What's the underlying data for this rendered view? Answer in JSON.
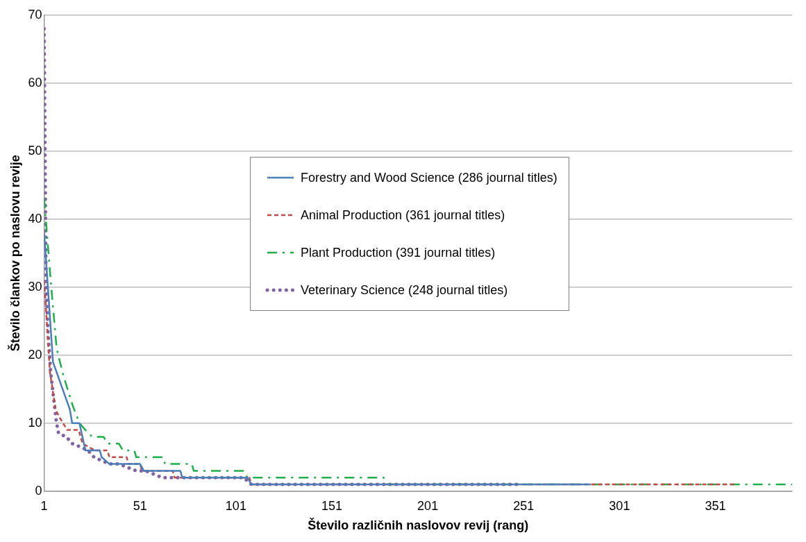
{
  "chart_data": {
    "type": "line",
    "xlabel": "Število različnih naslovov revij (rang)",
    "ylabel": "Število člankov po naslovu revije",
    "xlim": [
      1,
      391
    ],
    "xticks": [
      1,
      51,
      101,
      151,
      201,
      251,
      301,
      351
    ],
    "ylim": [
      0,
      70
    ],
    "yticks": [
      0,
      10,
      20,
      30,
      40,
      50,
      60,
      70
    ],
    "grid": "y",
    "legend": "center",
    "marker": "none",
    "series": [
      {
        "name": "Forestry and Wood Science (286 journal titles)",
        "color": "#4a7ebb",
        "line_style": "solid",
        "x": [
          1,
          5.6,
          14.4,
          15.6,
          19.4,
          22.5,
          30,
          31,
          35,
          51,
          53,
          72,
          73,
          107,
          109,
          286
        ],
        "values": [
          38,
          19,
          12,
          10,
          10,
          6,
          6,
          5,
          4,
          4,
          3,
          3,
          2,
          2,
          1,
          1
        ]
      },
      {
        "name": "Animal Production (361 journal titles)",
        "color": "#be4b48",
        "line_style": "dashed",
        "x": [
          1,
          4,
          7,
          8.7,
          13,
          19,
          21,
          27.5,
          34,
          35,
          44,
          45,
          51,
          52,
          68,
          69,
          108,
          109,
          361
        ],
        "values": [
          31,
          17.5,
          12,
          11,
          9,
          9,
          7,
          6,
          6,
          5,
          5,
          4,
          4,
          3,
          3,
          2,
          2,
          1,
          1
        ]
      },
      {
        "name": "Plant Production (391 journal titles)",
        "color": "#1fae4b",
        "line_style": "dashdot",
        "x": [
          1,
          4.4,
          7.5,
          11,
          16,
          19.4,
          22.5,
          26,
          32,
          34,
          40,
          42,
          48,
          49,
          63,
          64,
          78,
          79,
          105,
          107,
          178,
          180,
          391
        ],
        "values": [
          43,
          31,
          21,
          17,
          12.5,
          10,
          9,
          8,
          8,
          7,
          7,
          6,
          6,
          5,
          5,
          4,
          4,
          3,
          3,
          2,
          2,
          1,
          1
        ]
      },
      {
        "name": "Veterinary Science (248 journal titles)",
        "color": "#8064a2",
        "line_style": "dotted",
        "x": [
          1,
          2,
          3,
          4.4,
          5.6,
          7,
          7.5,
          8.5,
          12.5,
          15.6,
          20,
          23.8,
          27,
          31,
          35,
          40,
          49,
          54,
          62.5,
          67.5,
          105,
          109,
          248
        ],
        "values": [
          68,
          30,
          23.5,
          17.5,
          14.5,
          11,
          10,
          8.5,
          8,
          7,
          6.5,
          6,
          5,
          4.5,
          4,
          4,
          3,
          3,
          2,
          2,
          2,
          1,
          1
        ]
      }
    ]
  }
}
